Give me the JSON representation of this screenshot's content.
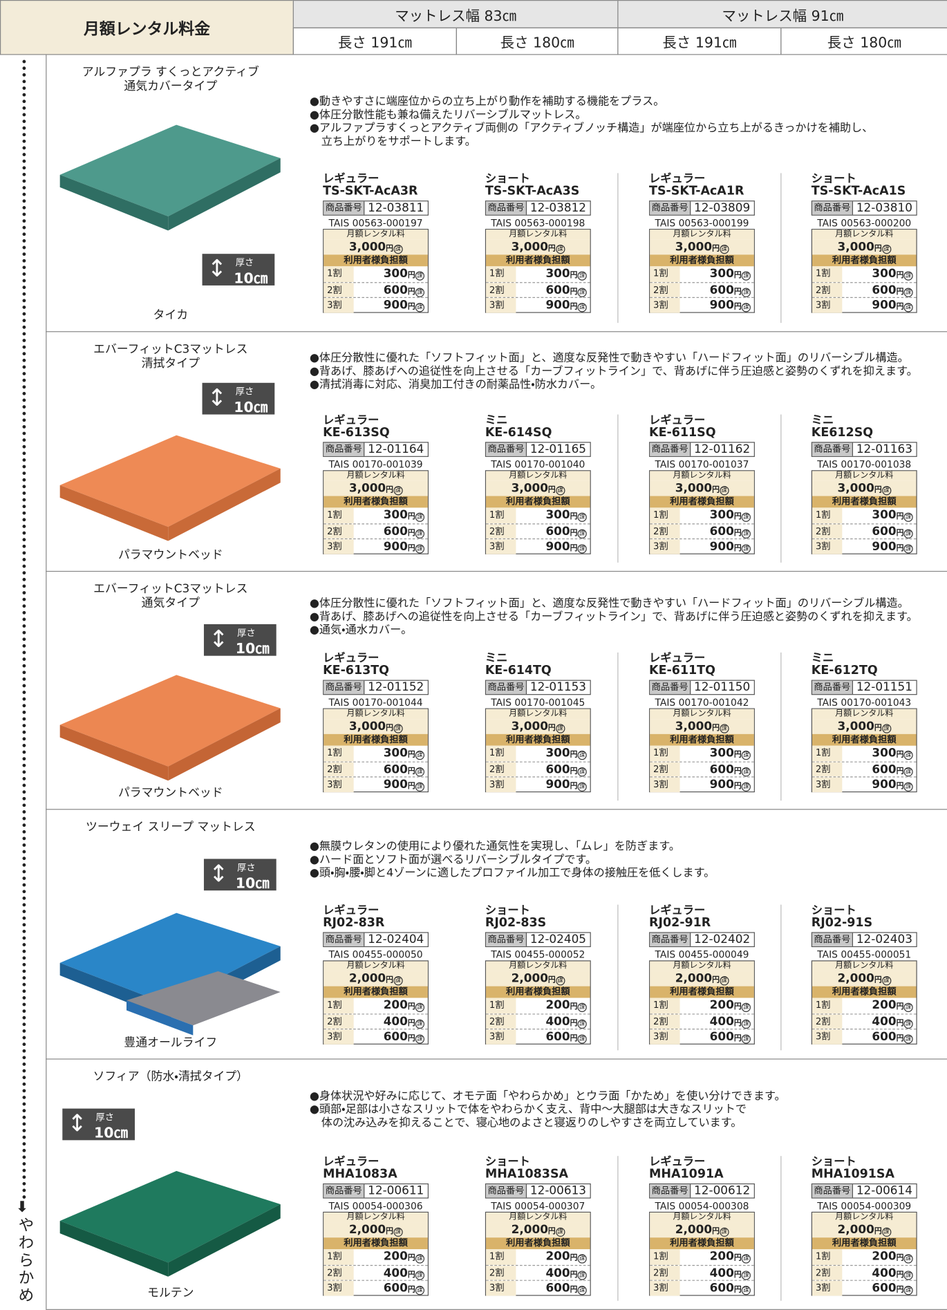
{
  "header": {
    "title": "月額レンタル料金",
    "widths": [
      {
        "label": "マットレス幅 83㎝",
        "lengths": [
          "長さ 191㎝",
          "長さ 180㎝"
        ]
      },
      {
        "label": "マットレス幅 91㎝",
        "lengths": [
          "長さ 191㎝",
          "長さ 180㎝"
        ]
      }
    ]
  },
  "side_label": "やわらかめ",
  "labels": {
    "code": "商品番号",
    "rent": "月額レンタル料",
    "copay": "利用者様負担額",
    "yen": "円",
    "tax": "課",
    "thickness": "厚さ",
    "tiers": [
      "1割",
      "2割",
      "3割"
    ]
  },
  "products": [
    {
      "name": [
        "アルファプラ すくっとアクティブ",
        "通気カバータイプ"
      ],
      "maker": "タイカ",
      "thickness": "10㎝",
      "bullets": [
        [
          "●動きやすさに端座位からの立ち上がり動作を補助する機能をプラス。"
        ],
        [
          "●体圧分散性能も兼ね備えたリバーシブルマットレス。"
        ],
        [
          "●アルファプラすくっとアクティブ両側の「アクティブノッチ構造」が端座位から立ち上がるきっかけを補助し、",
          "立ち上がりをサポートします。"
        ]
      ],
      "items": [
        {
          "variant": "レギュラー",
          "model": "TS-SKT-AcA3R",
          "code": "12-03811",
          "tais": "TAIS 00563-000197",
          "rent": "3,000",
          "copay": [
            "300",
            "600",
            "900"
          ]
        },
        {
          "variant": "ショート",
          "model": "TS-SKT-AcA3S",
          "code": "12-03812",
          "tais": "TAIS 00563-000198",
          "rent": "3,000",
          "copay": [
            "300",
            "600",
            "900"
          ]
        },
        {
          "variant": "レギュラー",
          "model": "TS-SKT-AcA1R",
          "code": "12-03809",
          "tais": "TAIS 00563-000199",
          "rent": "3,000",
          "copay": [
            "300",
            "600",
            "900"
          ]
        },
        {
          "variant": "ショート",
          "model": "TS-SKT-AcA1S",
          "code": "12-03810",
          "tais": "TAIS 00563-000200",
          "rent": "3,000",
          "copay": [
            "300",
            "600",
            "900"
          ]
        }
      ]
    },
    {
      "name": [
        "エバーフィットC3マットレス",
        "清拭タイプ"
      ],
      "maker": "パラマウントベッド",
      "thickness": "10㎝",
      "bullets": [
        [
          "●体圧分散性に優れた「ソフトフィット面」と、適度な反発性で動きやすい「ハードフィット面」のリバーシブル構造。"
        ],
        [
          "●背あげ、膝あげへの追従性を向上させる「カーブフィットライン」で、背あげに伴う圧迫感と姿勢のくずれを抑えます。"
        ],
        [
          "●清拭消毒に対応、消臭加工付きの耐薬品性・防水カバー。"
        ]
      ],
      "items": [
        {
          "variant": "レギュラー",
          "model": "KE-613SQ",
          "code": "12-01164",
          "tais": "TAIS 00170-001039",
          "rent": "3,000",
          "copay": [
            "300",
            "600",
            "900"
          ]
        },
        {
          "variant": "ミニ",
          "model": "KE-614SQ",
          "code": "12-01165",
          "tais": "TAIS 00170-001040",
          "rent": "3,000",
          "copay": [
            "300",
            "600",
            "900"
          ]
        },
        {
          "variant": "レギュラー",
          "model": "KE-611SQ",
          "code": "12-01162",
          "tais": "TAIS 00170-001037",
          "rent": "3,000",
          "copay": [
            "300",
            "600",
            "900"
          ]
        },
        {
          "variant": "ミニ",
          "model": "KE612SQ",
          "code": "12-01163",
          "tais": "TAIS 00170-001038",
          "rent": "3,000",
          "copay": [
            "300",
            "600",
            "900"
          ]
        }
      ]
    },
    {
      "name": [
        "エバーフィットC3マットレス",
        "通気タイプ"
      ],
      "maker": "パラマウントベッド",
      "thickness": "10㎝",
      "bullets": [
        [
          "●体圧分散性に優れた「ソフトフィット面」と、適度な反発性で動きやすい「ハードフィット面」のリバーシブル構造。"
        ],
        [
          "●背あげ、膝あげへの追従性を向上させる「カーブフィットライン」で、背あげに伴う圧迫感と姿勢のくずれを抑えます。"
        ],
        [
          "●通気・通水カバー。"
        ]
      ],
      "items": [
        {
          "variant": "レギュラー",
          "model": "KE-613TQ",
          "code": "12-01152",
          "tais": "TAIS 00170-001044",
          "rent": "3,000",
          "copay": [
            "300",
            "600",
            "900"
          ]
        },
        {
          "variant": "ミニ",
          "model": "KE-614TQ",
          "code": "12-01153",
          "tais": "TAIS 00170-001045",
          "rent": "3,000",
          "copay": [
            "300",
            "600",
            "900"
          ]
        },
        {
          "variant": "レギュラー",
          "model": "KE-611TQ",
          "code": "12-01150",
          "tais": "TAIS 00170-001042",
          "rent": "3,000",
          "copay": [
            "300",
            "600",
            "900"
          ]
        },
        {
          "variant": "ミニ",
          "model": "KE-612TQ",
          "code": "12-01151",
          "tais": "TAIS 00170-001043",
          "rent": "3,000",
          "copay": [
            "300",
            "600",
            "900"
          ]
        }
      ]
    },
    {
      "name": [
        "ツーウェイ スリープ マットレス"
      ],
      "maker": "豊通オールライフ",
      "thickness": "10㎝",
      "bullets": [
        [
          "●無膜ウレタンの使用により優れた通気性を実現し、「ムレ」を防ぎます。"
        ],
        [
          "●ハード面とソフト面が選べるリバーシブルタイプです。"
        ],
        [
          "●頭・胸・腰・脚と4ゾーンに適したプロファイル加工で身体の接触圧を低くします。"
        ]
      ],
      "items": [
        {
          "variant": "レギュラー",
          "model": "RJ02-83R",
          "code": "12-02404",
          "tais": "TAIS 00455-000050",
          "rent": "2,000",
          "copay": [
            "200",
            "400",
            "600"
          ]
        },
        {
          "variant": "ショート",
          "model": "RJ02-83S",
          "code": "12-02405",
          "tais": "TAIS 00455-000052",
          "rent": "2,000",
          "copay": [
            "200",
            "400",
            "600"
          ]
        },
        {
          "variant": "レギュラー",
          "model": "RJ02-91R",
          "code": "12-02402",
          "tais": "TAIS 00455-000049",
          "rent": "2,000",
          "copay": [
            "200",
            "400",
            "600"
          ]
        },
        {
          "variant": "ショート",
          "model": "RJ02-91S",
          "code": "12-02403",
          "tais": "TAIS 00455-000051",
          "rent": "2,000",
          "copay": [
            "200",
            "400",
            "600"
          ]
        }
      ]
    },
    {
      "name": [
        "ソフィア（防水・清拭タイプ）"
      ],
      "maker": "モルテン",
      "thickness": "10㎝",
      "bullets": [
        [
          "●身体状況や好みに応じて、オモテ面「やわらかめ」とウラ面「かため」を使い分けできます。"
        ],
        [
          "●頭部・足部は小さなスリットで体をやわらかく支え、背中〜大腿部は大きなスリットで",
          "体の沈み込みを抑えることで、寝心地のよさと寝返りのしやすさを両立しています。"
        ]
      ],
      "items": [
        {
          "variant": "レギュラー",
          "model": "MHA1083A",
          "code": "12-00611",
          "tais": "TAIS 00054-000306",
          "rent": "2,000",
          "copay": [
            "200",
            "400",
            "600"
          ]
        },
        {
          "variant": "ショート",
          "model": "MHA1083SA",
          "code": "12-00613",
          "tais": "TAIS 00054-000307",
          "rent": "2,000",
          "copay": [
            "200",
            "400",
            "600"
          ]
        },
        {
          "variant": "レギュラー",
          "model": "MHA1091A",
          "code": "12-00612",
          "tais": "TAIS 00054-000308",
          "rent": "2,000",
          "copay": [
            "200",
            "400",
            "600"
          ]
        },
        {
          "variant": "ショート",
          "model": "MHA1091SA",
          "code": "12-00614",
          "tais": "TAIS 00054-000309",
          "rent": "2,000",
          "copay": [
            "200",
            "400",
            "600"
          ]
        }
      ]
    }
  ]
}
